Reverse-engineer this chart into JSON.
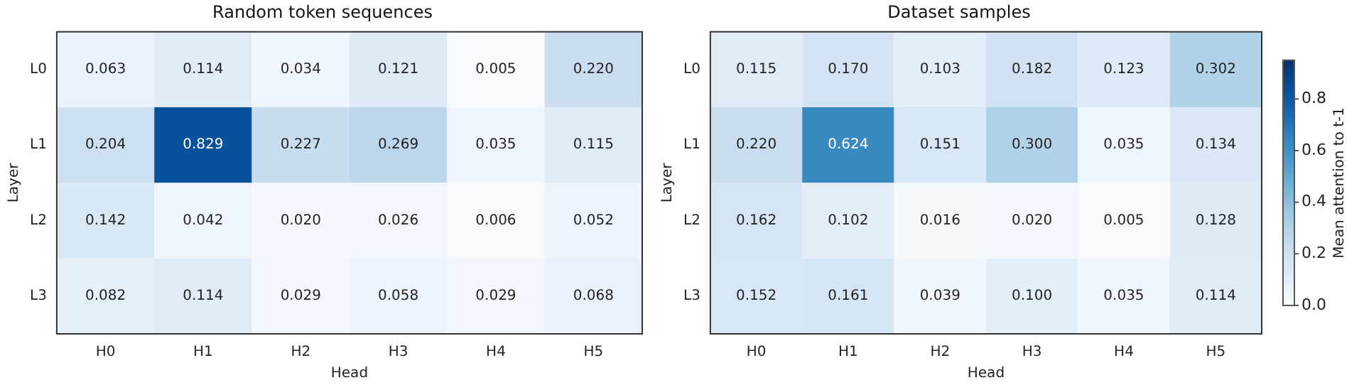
{
  "chart_data": [
    {
      "type": "heatmap",
      "title": "Random token sequences",
      "xlabel": "Head",
      "ylabel": "Layer",
      "categories": [
        "H0",
        "H1",
        "H2",
        "H3",
        "H4",
        "H5"
      ],
      "y_categories": [
        "L0",
        "L1",
        "L2",
        "L3"
      ],
      "cells": [
        [
          0.063,
          0.114,
          0.034,
          0.121,
          0.005,
          0.22
        ],
        [
          0.204,
          0.829,
          0.227,
          0.269,
          0.035,
          0.115
        ],
        [
          0.142,
          0.042,
          0.02,
          0.026,
          0.006,
          0.052
        ],
        [
          0.082,
          0.114,
          0.029,
          0.058,
          0.029,
          0.068
        ]
      ],
      "cell_labels": [
        [
          "0.063",
          "0.114",
          "0.034",
          "0.121",
          "0.005",
          "0.220"
        ],
        [
          "0.204",
          "0.829",
          "0.227",
          "0.269",
          "0.035",
          "0.115"
        ],
        [
          "0.142",
          "0.042",
          "0.020",
          "0.026",
          "0.006",
          "0.052"
        ],
        [
          "0.082",
          "0.114",
          "0.029",
          "0.058",
          "0.029",
          "0.068"
        ]
      ]
    },
    {
      "type": "heatmap",
      "title": "Dataset samples",
      "xlabel": "Head",
      "ylabel": "Layer",
      "clabel": "Mean attention to t-1",
      "categories": [
        "H0",
        "H1",
        "H2",
        "H3",
        "H4",
        "H5"
      ],
      "y_categories": [
        "L0",
        "L1",
        "L2",
        "L3"
      ],
      "cells": [
        [
          0.115,
          0.17,
          0.103,
          0.182,
          0.123,
          0.302
        ],
        [
          0.22,
          0.624,
          0.151,
          0.3,
          0.035,
          0.134
        ],
        [
          0.162,
          0.102,
          0.016,
          0.02,
          0.005,
          0.128
        ],
        [
          0.152,
          0.161,
          0.039,
          0.1,
          0.035,
          0.114
        ]
      ],
      "cell_labels": [
        [
          "0.115",
          "0.170",
          "0.103",
          "0.182",
          "0.123",
          "0.302"
        ],
        [
          "0.220",
          "0.624",
          "0.151",
          "0.300",
          "0.035",
          "0.134"
        ],
        [
          "0.162",
          "0.102",
          "0.016",
          "0.020",
          "0.005",
          "0.128"
        ],
        [
          "0.152",
          "0.161",
          "0.039",
          "0.100",
          "0.035",
          "0.114"
        ]
      ],
      "clim": [
        0,
        0.95
      ],
      "cticks": [
        {
          "value": 0,
          "label": "0.0"
        },
        0.2,
        0.4,
        0.6,
        0.8
      ]
    }
  ]
}
